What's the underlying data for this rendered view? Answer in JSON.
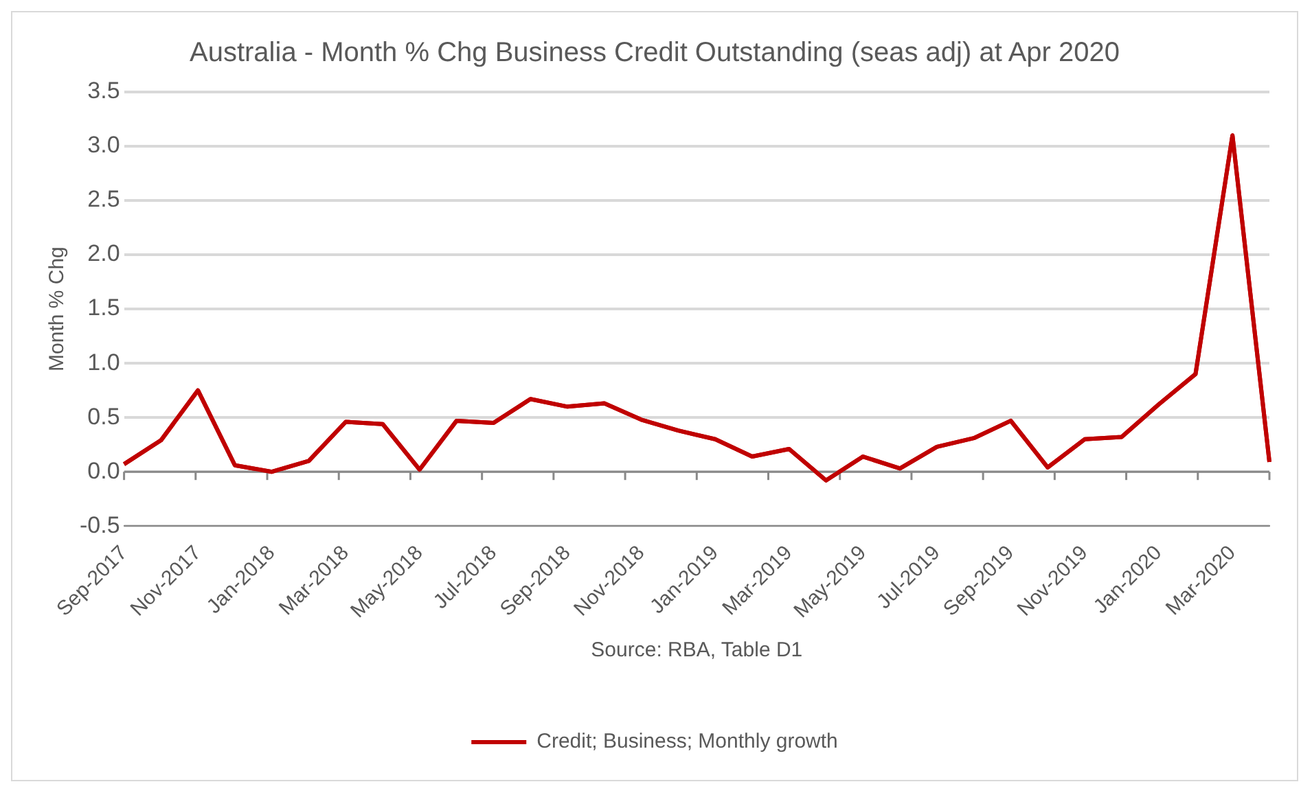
{
  "chart_data": {
    "type": "line",
    "title": "Australia - Month % Chg Business Credit Outstanding (seas adj) at Apr 2020",
    "ylabel": "Month % Chg",
    "annotations": [
      "Source: RBA, Table D1"
    ],
    "categories": [
      "Sep-2017",
      null,
      "Nov-2017",
      null,
      "Jan-2018",
      null,
      "Mar-2018",
      null,
      "May-2018",
      null,
      "Jul-2018",
      null,
      "Sep-2018",
      null,
      "Nov-2018",
      null,
      "Jan-2019",
      null,
      "Mar-2019",
      null,
      "May-2019",
      null,
      "Jul-2019",
      null,
      "Sep-2019",
      null,
      "Nov-2019",
      null,
      "Jan-2020",
      null,
      "Mar-2020",
      null
    ],
    "series": [
      {
        "name": "Credit; Business; Monthly growth",
        "color": "#c00000",
        "values": [
          0.07,
          0.29,
          0.75,
          0.06,
          0.0,
          0.1,
          0.46,
          0.44,
          0.02,
          0.47,
          0.45,
          0.67,
          0.6,
          0.63,
          0.48,
          0.38,
          0.3,
          0.14,
          0.21,
          -0.08,
          0.14,
          0.03,
          0.23,
          0.31,
          0.47,
          0.04,
          0.3,
          0.32,
          0.62,
          0.9,
          3.1,
          0.09
        ]
      }
    ],
    "ylim": [
      -0.5,
      3.5
    ],
    "yticks": [
      {
        "value": -0.5,
        "label": "-0.5"
      },
      {
        "value": 0,
        "label": "0.0"
      },
      {
        "value": 0.5,
        "label": "0.5"
      },
      {
        "value": 1,
        "label": "1.0"
      },
      {
        "value": 1.5,
        "label": "1.5"
      },
      {
        "value": 2,
        "label": "2.0"
      },
      {
        "value": 2.5,
        "label": "2.5"
      },
      {
        "value": 3,
        "label": "3.0"
      },
      {
        "value": 3.5,
        "label": "3.5"
      }
    ],
    "grid": "y",
    "legend": "bottom",
    "marker": "none",
    "line_style": "solid"
  }
}
